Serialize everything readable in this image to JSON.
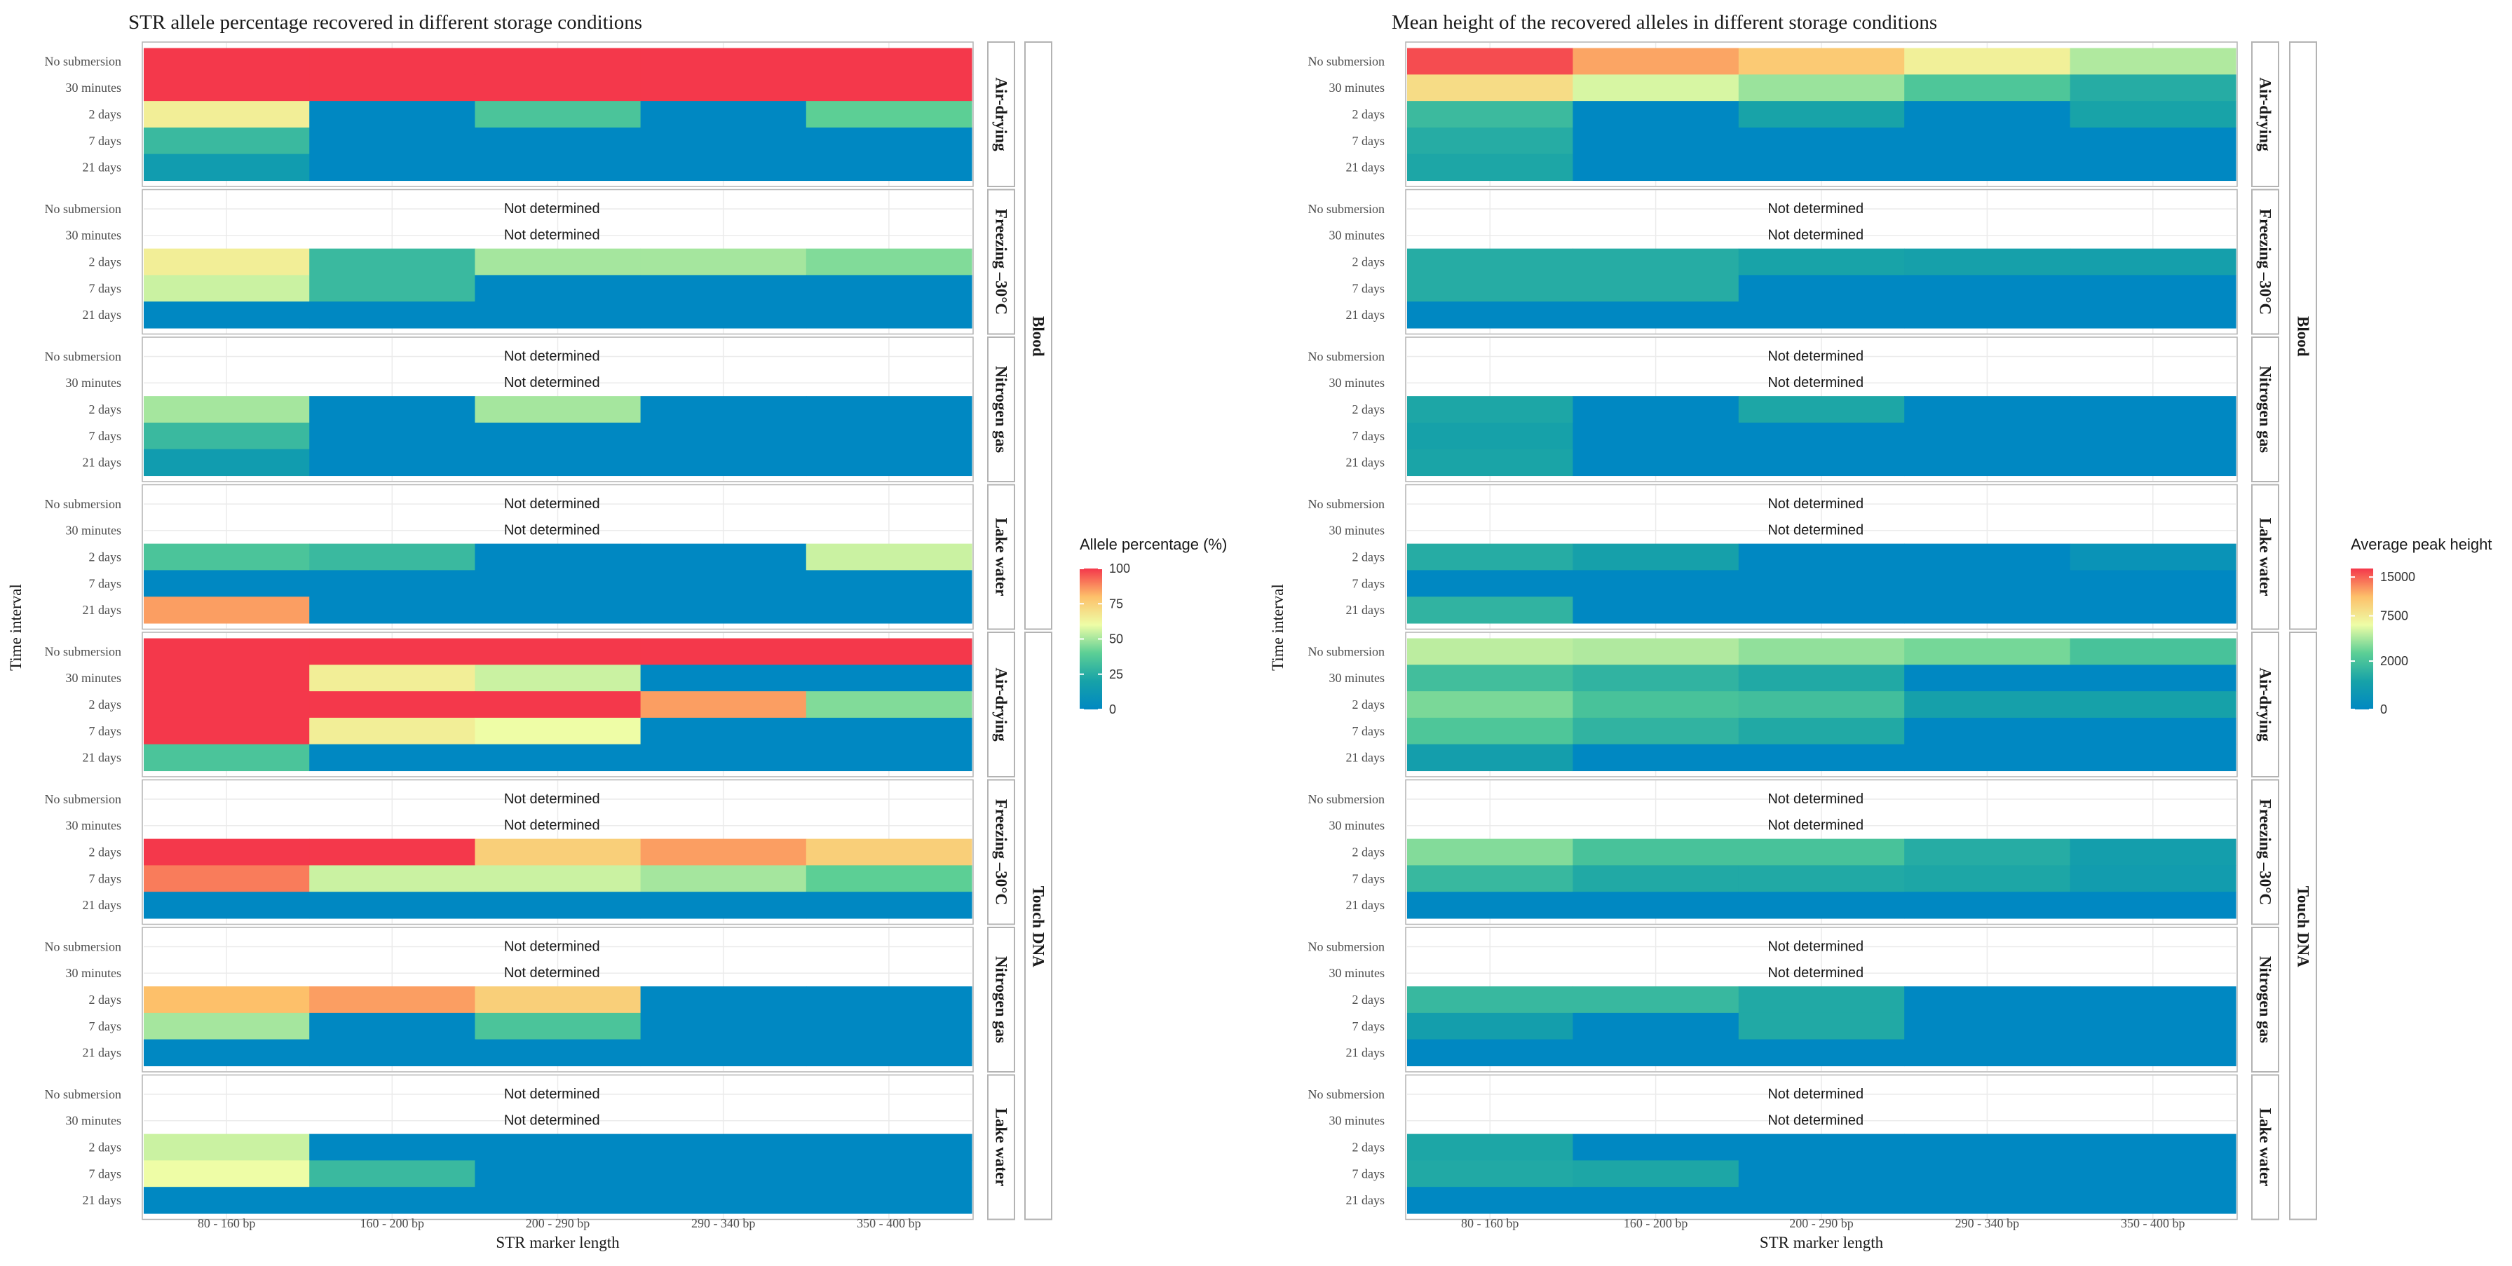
{
  "chart_data": [
    {
      "type": "heatmap",
      "title": "STR allele percentage recovered in different storage conditions",
      "xlabel": "STR marker length",
      "ylabel": "Time interval",
      "categories": [
        "80 - 160 bp",
        "160 - 200 bp",
        "200 - 290 bp",
        "290 - 340 bp",
        "350 - 400 bp"
      ],
      "time_intervals": [
        "No submersion",
        "30 minutes",
        "2 days",
        "7 days",
        "21 days"
      ],
      "sample_types": [
        "Blood",
        "Touch DNA"
      ],
      "storage_conditions": [
        "Air-drying",
        "Freezing –30°C",
        "Nitrogen gas",
        "Lake water"
      ],
      "na_label": "Not determined",
      "legend": {
        "title": "Allele percentage (%)",
        "scale": "linear",
        "min": 0,
        "max": 100,
        "ticks": [
          0,
          25,
          50,
          75,
          100
        ]
      },
      "panels": [
        {
          "sample": "Blood",
          "condition": "Air-drying",
          "values": [
            [
              100,
              100,
              100,
              100,
              100
            ],
            [
              100,
              100,
              100,
              100,
              100
            ],
            [
              65,
              0,
              35,
              0,
              40
            ],
            [
              30,
              0,
              0,
              0,
              0
            ],
            [
              15,
              0,
              0,
              0,
              0
            ]
          ]
        },
        {
          "sample": "Blood",
          "condition": "Freezing –30°C",
          "values": [
            [
              null,
              null,
              null,
              null,
              null
            ],
            [
              null,
              null,
              null,
              null,
              null
            ],
            [
              65,
              30,
              50,
              50,
              45
            ],
            [
              55,
              30,
              0,
              0,
              0
            ],
            [
              0,
              0,
              0,
              0,
              0
            ]
          ]
        },
        {
          "sample": "Blood",
          "condition": "Nitrogen gas",
          "values": [
            [
              null,
              null,
              null,
              null,
              null
            ],
            [
              null,
              null,
              null,
              null,
              null
            ],
            [
              50,
              0,
              50,
              0,
              0
            ],
            [
              30,
              0,
              0,
              0,
              0
            ],
            [
              15,
              0,
              0,
              0,
              0
            ]
          ]
        },
        {
          "sample": "Blood",
          "condition": "Lake water",
          "values": [
            [
              null,
              null,
              null,
              null,
              null
            ],
            [
              null,
              null,
              null,
              null,
              null
            ],
            [
              35,
              30,
              0,
              0,
              55
            ],
            [
              0,
              0,
              0,
              0,
              0
            ],
            [
              85,
              0,
              0,
              0,
              0
            ]
          ]
        },
        {
          "sample": "Touch DNA",
          "condition": "Air-drying",
          "values": [
            [
              100,
              100,
              100,
              100,
              100
            ],
            [
              100,
              65,
              55,
              0,
              0
            ],
            [
              100,
              100,
              100,
              85,
              45
            ],
            [
              100,
              65,
              60,
              0,
              0
            ],
            [
              35,
              0,
              0,
              0,
              0
            ]
          ]
        },
        {
          "sample": "Touch DNA",
          "condition": "Freezing –30°C",
          "values": [
            [
              null,
              null,
              null,
              null,
              null
            ],
            [
              null,
              null,
              null,
              null,
              null
            ],
            [
              100,
              100,
              75,
              85,
              75
            ],
            [
              90,
              55,
              55,
              50,
              40
            ],
            [
              0,
              0,
              0,
              0,
              0
            ]
          ]
        },
        {
          "sample": "Touch DNA",
          "condition": "Nitrogen gas",
          "values": [
            [
              null,
              null,
              null,
              null,
              null
            ],
            [
              null,
              null,
              null,
              null,
              null
            ],
            [
              80,
              85,
              75,
              0,
              0
            ],
            [
              50,
              0,
              35,
              0,
              0
            ],
            [
              0,
              0,
              0,
              0,
              0
            ]
          ]
        },
        {
          "sample": "Touch DNA",
          "condition": "Lake water",
          "values": [
            [
              null,
              null,
              null,
              null,
              null
            ],
            [
              null,
              null,
              null,
              null,
              null
            ],
            [
              55,
              0,
              0,
              0,
              0
            ],
            [
              60,
              30,
              0,
              0,
              0
            ],
            [
              0,
              0,
              0,
              0,
              0
            ]
          ]
        }
      ]
    },
    {
      "type": "heatmap",
      "title": "Mean height of the recovered alleles in different storage conditions",
      "xlabel": "STR marker length",
      "ylabel": "Time interval",
      "categories": [
        "80 - 160 bp",
        "160 - 200 bp",
        "200 - 290 bp",
        "290 - 340 bp",
        "350 - 400 bp"
      ],
      "time_intervals": [
        "No submersion",
        "30 minutes",
        "2 days",
        "7 days",
        "21 days"
      ],
      "sample_types": [
        "Blood",
        "Touch DNA"
      ],
      "storage_conditions": [
        "Air-drying",
        "Freezing –30°C",
        "Nitrogen gas",
        "Lake water"
      ],
      "na_label": "Not determined",
      "legend": {
        "title": "Average peak height",
        "scale": "sqrt",
        "min": 0,
        "max": 17000,
        "ticks": [
          0,
          2000,
          7500,
          15000
        ]
      },
      "panels": [
        {
          "sample": "Blood",
          "condition": "Air-drying",
          "values": [
            [
              16000,
              12000,
              10000,
              7000,
              4500
            ],
            [
              8500,
              5500,
              4000,
              2200,
              1000
            ],
            [
              1600,
              0,
              700,
              0,
              700
            ],
            [
              1000,
              0,
              0,
              0,
              0
            ],
            [
              800,
              0,
              0,
              0,
              0
            ]
          ]
        },
        {
          "sample": "Blood",
          "condition": "Freezing –30°C",
          "values": [
            [
              null,
              null,
              null,
              null,
              null
            ],
            [
              null,
              null,
              null,
              null,
              null
            ],
            [
              1000,
              1000,
              700,
              600,
              550
            ],
            [
              1000,
              1000,
              0,
              0,
              0
            ],
            [
              0,
              0,
              0,
              0,
              0
            ]
          ]
        },
        {
          "sample": "Blood",
          "condition": "Nitrogen gas",
          "values": [
            [
              null,
              null,
              null,
              null,
              null
            ],
            [
              null,
              null,
              null,
              null,
              null
            ],
            [
              800,
              0,
              800,
              0,
              0
            ],
            [
              650,
              0,
              0,
              0,
              0
            ],
            [
              750,
              0,
              0,
              0,
              0
            ]
          ]
        },
        {
          "sample": "Blood",
          "condition": "Lake water",
          "values": [
            [
              null,
              null,
              null,
              null,
              null
            ],
            [
              null,
              null,
              null,
              null,
              null
            ],
            [
              1000,
              600,
              0,
              0,
              120
            ],
            [
              0,
              0,
              0,
              0,
              0
            ],
            [
              1300,
              0,
              0,
              0,
              0
            ]
          ]
        },
        {
          "sample": "Touch DNA",
          "condition": "Air-drying",
          "values": [
            [
              4800,
              4500,
              3800,
              3200,
              2000
            ],
            [
              1800,
              1300,
              900,
              0,
              0
            ],
            [
              3300,
              2000,
              1800,
              600,
              650
            ],
            [
              2200,
              1300,
              900,
              0,
              0
            ],
            [
              500,
              0,
              0,
              0,
              0
            ]
          ]
        },
        {
          "sample": "Touch DNA",
          "condition": "Freezing –30°C",
          "values": [
            [
              null,
              null,
              null,
              null,
              null
            ],
            [
              null,
              null,
              null,
              null,
              null
            ],
            [
              3500,
              2000,
              2000,
              1000,
              500
            ],
            [
              1500,
              900,
              900,
              800,
              400
            ],
            [
              0,
              0,
              0,
              0,
              0
            ]
          ]
        },
        {
          "sample": "Touch DNA",
          "condition": "Nitrogen gas",
          "values": [
            [
              null,
              null,
              null,
              null,
              null
            ],
            [
              null,
              null,
              null,
              null,
              null
            ],
            [
              1500,
              1500,
              900,
              0,
              0
            ],
            [
              500,
              0,
              900,
              0,
              0
            ],
            [
              0,
              0,
              0,
              0,
              0
            ]
          ]
        },
        {
          "sample": "Touch DNA",
          "condition": "Lake water",
          "values": [
            [
              null,
              null,
              null,
              null,
              null
            ],
            [
              null,
              null,
              null,
              null,
              null
            ],
            [
              800,
              0,
              0,
              0,
              0
            ],
            [
              900,
              800,
              0,
              0,
              0
            ],
            [
              0,
              0,
              0,
              0,
              0
            ]
          ]
        }
      ]
    }
  ],
  "colors": {
    "scale": [
      "#0088c2",
      "#17a2a8",
      "#5ccf95",
      "#eefda6",
      "#fdc06a",
      "#f4384b"
    ],
    "grid": "#ebebeb",
    "strip_fill": "#ffffff",
    "strip_border": "#b3b3b3",
    "panel_border": "#b3b3b3"
  }
}
